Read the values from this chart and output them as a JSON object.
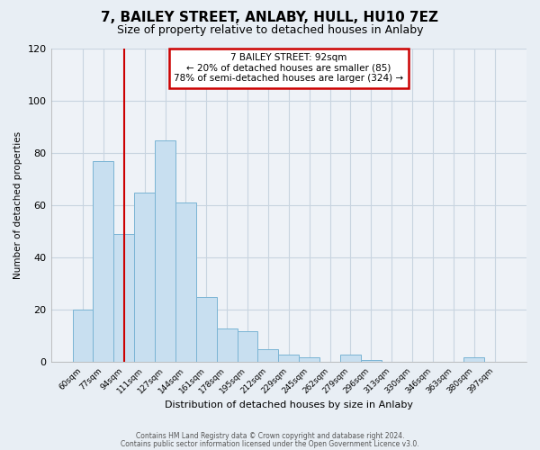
{
  "title": "7, BAILEY STREET, ANLABY, HULL, HU10 7EZ",
  "subtitle": "Size of property relative to detached houses in Anlaby",
  "xlabel": "Distribution of detached houses by size in Anlaby",
  "ylabel": "Number of detached properties",
  "bar_labels": [
    "60sqm",
    "77sqm",
    "94sqm",
    "111sqm",
    "127sqm",
    "144sqm",
    "161sqm",
    "178sqm",
    "195sqm",
    "212sqm",
    "229sqm",
    "245sqm",
    "262sqm",
    "279sqm",
    "296sqm",
    "313sqm",
    "330sqm",
    "346sqm",
    "363sqm",
    "380sqm",
    "397sqm"
  ],
  "bar_heights": [
    20,
    77,
    49,
    65,
    85,
    61,
    25,
    13,
    12,
    5,
    3,
    2,
    0,
    3,
    1,
    0,
    0,
    0,
    0,
    2,
    0
  ],
  "bar_color": "#c8dff0",
  "bar_edge_color": "#7ab4d4",
  "vline_color": "#cc0000",
  "annotation_box_color": "#cc0000",
  "ylim": [
    0,
    120
  ],
  "yticks": [
    0,
    20,
    40,
    60,
    80,
    100,
    120
  ],
  "footer1": "Contains HM Land Registry data © Crown copyright and database right 2024.",
  "footer2": "Contains public sector information licensed under the Open Government Licence v3.0.",
  "background_color": "#e8eef4",
  "plot_background": "#eef2f7",
  "grid_color": "#c8d4e0",
  "title_fontsize": 11,
  "subtitle_fontsize": 9
}
